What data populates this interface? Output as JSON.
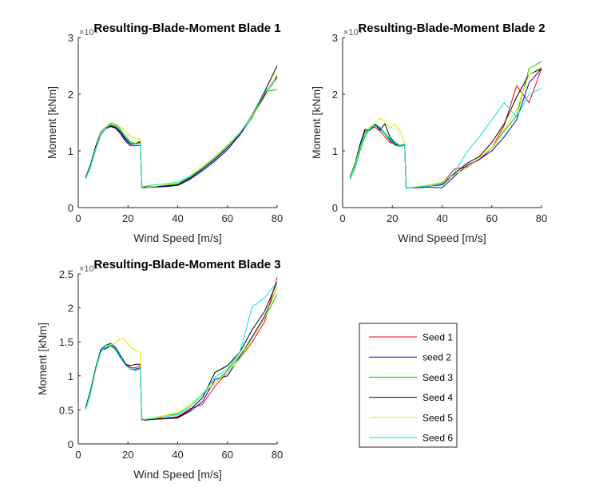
{
  "chart_data": [
    {
      "type": "line",
      "title": "Resulting-Blade-Moment Blade 1",
      "exponent": "×10⁴",
      "xlabel": "Wind Speed [m/s]",
      "ylabel": "Moment [kNm]",
      "xlim": [
        0,
        80
      ],
      "ylim": [
        0,
        3
      ],
      "xticks": [
        0,
        20,
        40,
        60,
        80
      ],
      "yticks": [
        0,
        1,
        2,
        3
      ],
      "ytick_labels": [
        "0",
        "1",
        "2",
        "3"
      ],
      "grid": false,
      "x": [
        3,
        5,
        7,
        9,
        11,
        13,
        15,
        17,
        19,
        21,
        23,
        25,
        25.5,
        27,
        30,
        35,
        40,
        45,
        50,
        55,
        60,
        65,
        70,
        75,
        80
      ],
      "series": [
        {
          "name": "Seed 1",
          "color": "#ff0000",
          "values": [
            0.52,
            0.75,
            1.05,
            1.3,
            1.4,
            1.45,
            1.43,
            1.35,
            1.22,
            1.13,
            1.12,
            1.16,
            0.36,
            0.36,
            0.37,
            0.38,
            0.4,
            0.52,
            0.68,
            0.85,
            1.05,
            1.3,
            1.62,
            2.0,
            2.33
          ]
        },
        {
          "name": "seed 2",
          "color": "#0000cc",
          "values": [
            0.53,
            0.76,
            1.06,
            1.28,
            1.39,
            1.43,
            1.4,
            1.3,
            1.17,
            1.09,
            1.09,
            1.1,
            0.36,
            0.35,
            0.36,
            0.37,
            0.39,
            0.5,
            0.65,
            0.82,
            1.02,
            1.28,
            1.6,
            1.98,
            2.3
          ]
        },
        {
          "name": "Seed 3",
          "color": "#00cc00",
          "values": [
            0.5,
            0.72,
            1.02,
            1.27,
            1.4,
            1.48,
            1.46,
            1.38,
            1.26,
            1.16,
            1.13,
            1.18,
            0.35,
            0.36,
            0.37,
            0.39,
            0.42,
            0.54,
            0.7,
            0.88,
            1.08,
            1.32,
            1.58,
            2.05,
            2.08
          ]
        },
        {
          "name": "Seed 4",
          "color": "#000000",
          "values": [
            0.54,
            0.77,
            1.08,
            1.32,
            1.42,
            1.44,
            1.41,
            1.33,
            1.2,
            1.12,
            1.12,
            1.15,
            0.36,
            0.36,
            0.37,
            0.38,
            0.4,
            0.52,
            0.68,
            0.86,
            1.06,
            1.3,
            1.64,
            2.05,
            2.5
          ]
        },
        {
          "name": "Seed 5",
          "color": "#e6e600",
          "values": [
            0.51,
            0.74,
            1.04,
            1.3,
            1.42,
            1.5,
            1.47,
            1.42,
            1.35,
            1.26,
            1.22,
            1.2,
            0.34,
            0.35,
            0.37,
            0.4,
            0.43,
            0.56,
            0.73,
            0.9,
            1.1,
            1.33,
            1.6,
            1.95,
            2.35
          ]
        },
        {
          "name": "Seed 6",
          "color": "#00e6e6",
          "values": [
            0.52,
            0.74,
            1.04,
            1.28,
            1.4,
            1.46,
            1.44,
            1.36,
            1.24,
            1.14,
            1.12,
            1.14,
            0.36,
            0.38,
            0.4,
            0.42,
            0.45,
            0.55,
            0.7,
            0.87,
            1.07,
            1.31,
            1.63,
            2.03,
            2.28
          ]
        }
      ]
    },
    {
      "type": "line",
      "title": "Resulting-Blade-Moment Blade 2",
      "exponent": "×10⁴",
      "xlabel": "Wind Speed [m/s]",
      "ylabel": "Moment [kNm]",
      "xlim": [
        0,
        80
      ],
      "ylim": [
        0,
        3
      ],
      "xticks": [
        0,
        20,
        40,
        60,
        80
      ],
      "yticks": [
        0,
        1,
        2,
        3
      ],
      "ytick_labels": [
        "0",
        "1",
        "2",
        "3"
      ],
      "grid": false,
      "x": [
        3,
        5,
        7,
        9,
        11,
        13,
        15,
        17,
        19,
        21,
        23,
        25,
        25.5,
        27,
        30,
        35,
        40,
        45,
        50,
        55,
        60,
        65,
        70,
        75,
        80
      ],
      "series": [
        {
          "name": "Seed 1",
          "color": "#ff0000",
          "values": [
            0.52,
            0.75,
            1.08,
            1.32,
            1.38,
            1.42,
            1.35,
            1.25,
            1.15,
            1.12,
            1.1,
            1.12,
            0.35,
            0.35,
            0.36,
            0.38,
            0.42,
            0.68,
            0.72,
            0.85,
            1.05,
            1.45,
            2.15,
            1.85,
            2.45
          ]
        },
        {
          "name": "seed 2",
          "color": "#0000cc",
          "values": [
            0.53,
            0.76,
            1.1,
            1.35,
            1.37,
            1.45,
            1.4,
            1.3,
            1.2,
            1.12,
            1.08,
            1.1,
            0.36,
            0.35,
            0.35,
            0.36,
            0.35,
            0.55,
            0.75,
            0.85,
            1.0,
            1.25,
            1.55,
            2.2,
            2.45
          ]
        },
        {
          "name": "Seed 3",
          "color": "#00cc00",
          "values": [
            0.5,
            0.7,
            1.0,
            1.25,
            1.4,
            1.48,
            1.42,
            1.3,
            1.18,
            1.1,
            1.08,
            1.1,
            0.34,
            0.35,
            0.37,
            0.4,
            0.44,
            0.58,
            0.7,
            0.88,
            1.05,
            1.35,
            1.62,
            2.45,
            2.58
          ]
        },
        {
          "name": "Seed 4",
          "color": "#000000",
          "values": [
            0.54,
            0.78,
            1.12,
            1.38,
            1.36,
            1.48,
            1.36,
            1.48,
            1.25,
            1.15,
            1.1,
            1.12,
            0.36,
            0.35,
            0.36,
            0.38,
            0.4,
            0.6,
            0.78,
            0.9,
            1.15,
            1.48,
            1.95,
            2.35,
            2.45
          ]
        },
        {
          "name": "Seed 5",
          "color": "#e6e600",
          "values": [
            0.52,
            0.76,
            1.06,
            1.32,
            1.42,
            1.48,
            1.58,
            1.52,
            1.4,
            1.48,
            1.35,
            1.15,
            0.36,
            0.35,
            0.37,
            0.4,
            0.45,
            0.58,
            0.7,
            0.88,
            1.05,
            1.38,
            1.72,
            2.35,
            2.48
          ]
        },
        {
          "name": "Seed 6",
          "color": "#00e6e6",
          "values": [
            0.51,
            0.73,
            1.04,
            1.3,
            1.38,
            1.46,
            1.42,
            1.32,
            1.22,
            1.14,
            1.1,
            1.12,
            0.35,
            0.35,
            0.36,
            0.38,
            0.42,
            0.62,
            0.98,
            1.25,
            1.55,
            1.85,
            1.6,
            2.0,
            2.1
          ]
        }
      ]
    },
    {
      "type": "line",
      "title": "Resulting-Blade-Moment Blade 3",
      "exponent": "×10⁴",
      "xlabel": "Wind Speed [m/s]",
      "ylabel": "Moment [kNm]",
      "xlim": [
        0,
        80
      ],
      "ylim": [
        0,
        2.5
      ],
      "xticks": [
        0,
        20,
        40,
        60,
        80
      ],
      "yticks": [
        0,
        0.5,
        1,
        1.5,
        2,
        2.5
      ],
      "ytick_labels": [
        "0",
        "0.5",
        "1",
        "1.5",
        "2",
        "2.5"
      ],
      "grid": false,
      "x": [
        3,
        5,
        7,
        9,
        11,
        13,
        15,
        17,
        19,
        21,
        23,
        25,
        25.5,
        27,
        30,
        35,
        40,
        45,
        50,
        55,
        60,
        65,
        70,
        75,
        80
      ],
      "series": [
        {
          "name": "Seed 1",
          "color": "#ff0000",
          "values": [
            0.52,
            0.78,
            1.1,
            1.35,
            1.42,
            1.45,
            1.4,
            1.28,
            1.18,
            1.12,
            1.12,
            1.15,
            0.36,
            0.36,
            0.37,
            0.38,
            0.4,
            0.52,
            0.58,
            0.85,
            1.05,
            1.25,
            1.5,
            1.8,
            2.45
          ]
        },
        {
          "name": "seed 2",
          "color": "#0000cc",
          "values": [
            0.53,
            0.79,
            1.12,
            1.38,
            1.45,
            1.48,
            1.42,
            1.3,
            1.18,
            1.1,
            1.1,
            1.12,
            0.36,
            0.35,
            0.36,
            0.37,
            0.38,
            0.48,
            0.62,
            0.95,
            1.0,
            1.28,
            1.58,
            1.88,
            2.3
          ]
        },
        {
          "name": "Seed 3",
          "color": "#00cc00",
          "values": [
            0.5,
            0.75,
            1.08,
            1.34,
            1.45,
            1.46,
            1.4,
            1.28,
            1.16,
            1.1,
            1.08,
            1.1,
            0.35,
            0.36,
            0.38,
            0.42,
            0.44,
            0.55,
            0.72,
            0.9,
            1.08,
            1.3,
            1.55,
            1.85,
            2.2
          ]
        },
        {
          "name": "Seed 4",
          "color": "#000000",
          "values": [
            0.54,
            0.8,
            1.12,
            1.36,
            1.4,
            1.44,
            1.38,
            1.26,
            1.17,
            1.15,
            1.17,
            1.17,
            0.36,
            0.35,
            0.36,
            0.37,
            0.39,
            0.5,
            0.68,
            1.05,
            1.15,
            1.35,
            1.68,
            1.95,
            2.38
          ]
        },
        {
          "name": "Seed 5",
          "color": "#e6e600",
          "values": [
            0.52,
            0.76,
            1.08,
            1.34,
            1.42,
            1.46,
            1.48,
            1.55,
            1.52,
            1.42,
            1.38,
            1.35,
            0.35,
            0.36,
            0.38,
            0.42,
            0.46,
            0.58,
            0.74,
            0.9,
            1.05,
            1.25,
            1.55,
            1.85,
            2.3
          ]
        },
        {
          "name": "Seed 6",
          "color": "#00e6e6",
          "values": [
            0.51,
            0.77,
            1.1,
            1.35,
            1.42,
            1.44,
            1.38,
            1.26,
            1.16,
            1.1,
            1.09,
            1.1,
            0.35,
            0.36,
            0.37,
            0.4,
            0.43,
            0.55,
            0.72,
            0.98,
            1.1,
            1.35,
            2.02,
            2.15,
            2.38
          ]
        }
      ]
    }
  ],
  "legend": {
    "location": "bottom-right",
    "entries": [
      {
        "label": "Seed 1",
        "color": "#ff0000"
      },
      {
        "label": "seed 2",
        "color": "#0000cc"
      },
      {
        "label": "Seed 3",
        "color": "#00cc00"
      },
      {
        "label": "Seed 4",
        "color": "#000000"
      },
      {
        "label": "Seed 5",
        "color": "#e6e600"
      },
      {
        "label": "Seed 6",
        "color": "#00e6e6"
      }
    ]
  }
}
